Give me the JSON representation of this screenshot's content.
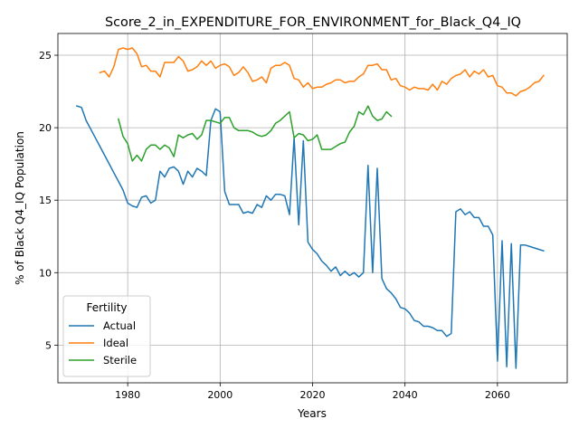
{
  "chart_data": {
    "type": "line",
    "title": "Score_2_in_EXPENDITURE_FOR_ENVIRONMENT_for_Black_Q4_IQ",
    "xlabel": "Years",
    "ylabel": "% of Black Q4_IQ Population",
    "xlim": [
      1964.9,
      2075.1
    ],
    "ylim": [
      2.4,
      26.5
    ],
    "x_ticks": [
      1980,
      2000,
      2020,
      2040,
      2060
    ],
    "y_ticks": [
      5,
      10,
      15,
      20,
      25
    ],
    "grid": true,
    "legend": {
      "title": "Fertility",
      "placement": "lower-left"
    },
    "series": [
      {
        "name": "Actual",
        "color": "#1f77b4",
        "x": [
          1969,
          1970,
          1971,
          1972,
          1973,
          1974,
          1975,
          1976,
          1977,
          1978,
          1979,
          1980,
          1981,
          1982,
          1983,
          1984,
          1985,
          1986,
          1987,
          1988,
          1989,
          1990,
          1991,
          1992,
          1993,
          1994,
          1995,
          1996,
          1997,
          1998,
          1999,
          2000,
          2001,
          2002,
          2003,
          2004,
          2005,
          2006,
          2007,
          2008,
          2009,
          2010,
          2011,
          2012,
          2013,
          2014,
          2015,
          2016,
          2017,
          2018,
          2019,
          2020,
          2021,
          2022,
          2023,
          2024,
          2025,
          2026,
          2027,
          2028,
          2029,
          2030,
          2031,
          2032,
          2033,
          2034,
          2035,
          2036,
          2037,
          2038,
          2039,
          2040,
          2041,
          2042,
          2043,
          2044,
          2045,
          2046,
          2047,
          2048,
          2049,
          2050,
          2051,
          2052,
          2053,
          2054,
          2055,
          2056,
          2057,
          2058,
          2059,
          2060,
          2061,
          2062,
          2063,
          2064,
          2065,
          2066,
          2067,
          2068,
          2069,
          2070
        ],
        "values": [
          21.5,
          21.4,
          20.5,
          19.9,
          19.3,
          18.7,
          18.1,
          17.5,
          16.9,
          16.3,
          15.7,
          14.8,
          14.6,
          14.5,
          15.2,
          15.3,
          14.8,
          15.0,
          17.0,
          16.6,
          17.2,
          17.3,
          17.0,
          16.1,
          17.0,
          16.6,
          17.2,
          17.0,
          16.7,
          20.5,
          21.3,
          21.1,
          15.6,
          14.7,
          14.7,
          14.7,
          14.1,
          14.2,
          14.1,
          14.7,
          14.5,
          15.3,
          15.0,
          15.4,
          15.4,
          15.3,
          14.0,
          19.3,
          13.3,
          19.1,
          12.1,
          11.6,
          11.3,
          10.8,
          10.5,
          10.1,
          10.4,
          9.8,
          10.1,
          9.8,
          10.0,
          9.7,
          10.0,
          17.4,
          10.0,
          17.2,
          9.6,
          8.9,
          8.6,
          8.2,
          7.6,
          7.5,
          7.2,
          6.7,
          6.6,
          6.3,
          6.3,
          6.2,
          6.0,
          6.0,
          5.6,
          5.8,
          14.2,
          14.4,
          14.0,
          14.2,
          13.8,
          13.8,
          13.2,
          13.2,
          12.6,
          3.9,
          12.2,
          3.5,
          12.0,
          3.4,
          11.9,
          11.9,
          11.8,
          11.7,
          11.6,
          11.5
        ]
      },
      {
        "name": "Ideal",
        "color": "#ff7f0e",
        "x": [
          1974,
          1975,
          1976,
          1977,
          1978,
          1979,
          1980,
          1981,
          1982,
          1983,
          1984,
          1985,
          1986,
          1987,
          1988,
          1989,
          1990,
          1991,
          1992,
          1993,
          1994,
          1995,
          1996,
          1997,
          1998,
          1999,
          2000,
          2001,
          2002,
          2003,
          2004,
          2005,
          2006,
          2007,
          2008,
          2009,
          2010,
          2011,
          2012,
          2013,
          2014,
          2015,
          2016,
          2017,
          2018,
          2019,
          2020,
          2021,
          2022,
          2023,
          2024,
          2025,
          2026,
          2027,
          2028,
          2029,
          2030,
          2031,
          2032,
          2033,
          2034,
          2035,
          2036,
          2037,
          2038,
          2039,
          2040,
          2041,
          2042,
          2043,
          2044,
          2045,
          2046,
          2047,
          2048,
          2049,
          2050,
          2051,
          2052,
          2053,
          2054,
          2055,
          2056,
          2057,
          2058,
          2059,
          2060,
          2061,
          2062,
          2063,
          2064,
          2065,
          2066,
          2067,
          2068,
          2069,
          2070
        ],
        "values": [
          23.8,
          23.9,
          23.5,
          24.2,
          25.4,
          25.5,
          25.4,
          25.5,
          25.1,
          24.2,
          24.3,
          23.9,
          23.9,
          23.5,
          24.5,
          24.5,
          24.5,
          24.9,
          24.6,
          23.9,
          24.0,
          24.2,
          24.6,
          24.3,
          24.6,
          24.1,
          24.3,
          24.4,
          24.2,
          23.6,
          23.8,
          24.2,
          23.8,
          23.2,
          23.3,
          23.5,
          23.1,
          24.1,
          24.3,
          24.3,
          24.5,
          24.3,
          23.4,
          23.3,
          22.8,
          23.1,
          22.7,
          22.8,
          22.8,
          23.0,
          23.1,
          23.3,
          23.3,
          23.1,
          23.2,
          23.2,
          23.5,
          23.7,
          24.3,
          24.3,
          24.4,
          24.0,
          24.0,
          23.3,
          23.4,
          22.9,
          22.8,
          22.6,
          22.8,
          22.7,
          22.7,
          22.6,
          23.0,
          22.6,
          23.2,
          23.0,
          23.4,
          23.6,
          23.7,
          24.0,
          23.5,
          23.9,
          23.7,
          24.0,
          23.5,
          23.6,
          22.9,
          22.8,
          22.4,
          22.4,
          22.2,
          22.5,
          22.6,
          22.8,
          23.1,
          23.2,
          23.6
        ]
      },
      {
        "name": "Sterile",
        "color": "#2ca02c",
        "x": [
          1978,
          1979,
          1980,
          1981,
          1982,
          1983,
          1984,
          1985,
          1986,
          1987,
          1988,
          1989,
          1990,
          1991,
          1992,
          1993,
          1994,
          1995,
          1996,
          1997,
          1998,
          1999,
          2000,
          2001,
          2002,
          2003,
          2004,
          2005,
          2006,
          2007,
          2008,
          2009,
          2010,
          2011,
          2012,
          2013,
          2014,
          2015,
          2016,
          2017,
          2018,
          2019,
          2020,
          2021,
          2022,
          2023,
          2024,
          2025,
          2026,
          2027,
          2028,
          2029,
          2030,
          2031,
          2032,
          2033,
          2034,
          2035,
          2036,
          2037
        ],
        "values": [
          20.6,
          19.4,
          18.9,
          17.7,
          18.1,
          17.7,
          18.5,
          18.8,
          18.8,
          18.5,
          18.8,
          18.6,
          18.0,
          19.5,
          19.3,
          19.5,
          19.6,
          19.2,
          19.5,
          20.5,
          20.5,
          20.4,
          20.3,
          20.7,
          20.7,
          20.0,
          19.8,
          19.8,
          19.8,
          19.7,
          19.5,
          19.4,
          19.5,
          19.8,
          20.3,
          20.5,
          20.8,
          21.1,
          19.3,
          19.6,
          19.5,
          19.1,
          19.2,
          19.5,
          18.5,
          18.5,
          18.5,
          18.7,
          18.9,
          19.0,
          19.7,
          20.1,
          21.1,
          20.9,
          21.5,
          20.8,
          20.5,
          20.6,
          21.1,
          20.8
        ]
      }
    ]
  }
}
